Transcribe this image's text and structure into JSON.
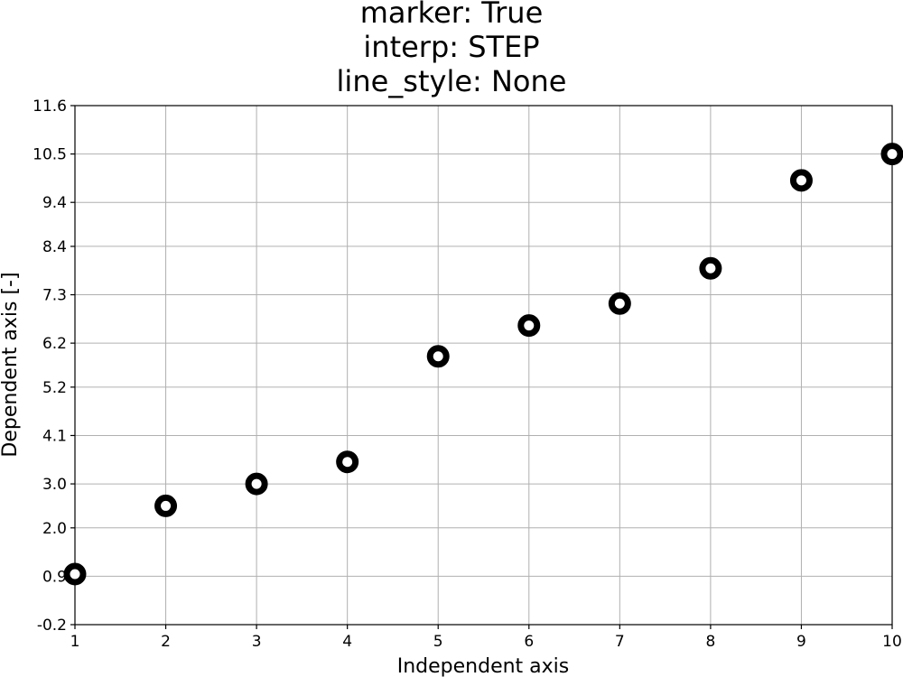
{
  "chart_data": {
    "type": "scatter",
    "title_lines": [
      "marker: True",
      "interp: STEP",
      "line_style: None"
    ],
    "xlabel": "Independent axis",
    "ylabel": "Dependent axis [-]",
    "xlim": [
      1,
      10
    ],
    "ylim": [
      -0.2,
      11.6
    ],
    "x_ticks": [
      "1",
      "2",
      "3",
      "4",
      "5",
      "6",
      "7",
      "8",
      "9",
      "10"
    ],
    "y_ticks": [
      "-0.2",
      "0.9",
      "2.0",
      "3.0",
      "4.1",
      "5.2",
      "6.2",
      "7.3",
      "8.4",
      "9.4",
      "10.5",
      "11.6"
    ],
    "grid": true,
    "marker": "hollow-circle",
    "marker_color": "#000000",
    "grid_color": "#b0b0b0",
    "series": [
      {
        "x": [
          1,
          2,
          3,
          4,
          5,
          6,
          7,
          8,
          9,
          10
        ],
        "y": [
          0.95,
          2.5,
          3.0,
          3.5,
          5.9,
          6.6,
          7.1,
          7.9,
          9.9,
          10.5
        ]
      }
    ]
  }
}
